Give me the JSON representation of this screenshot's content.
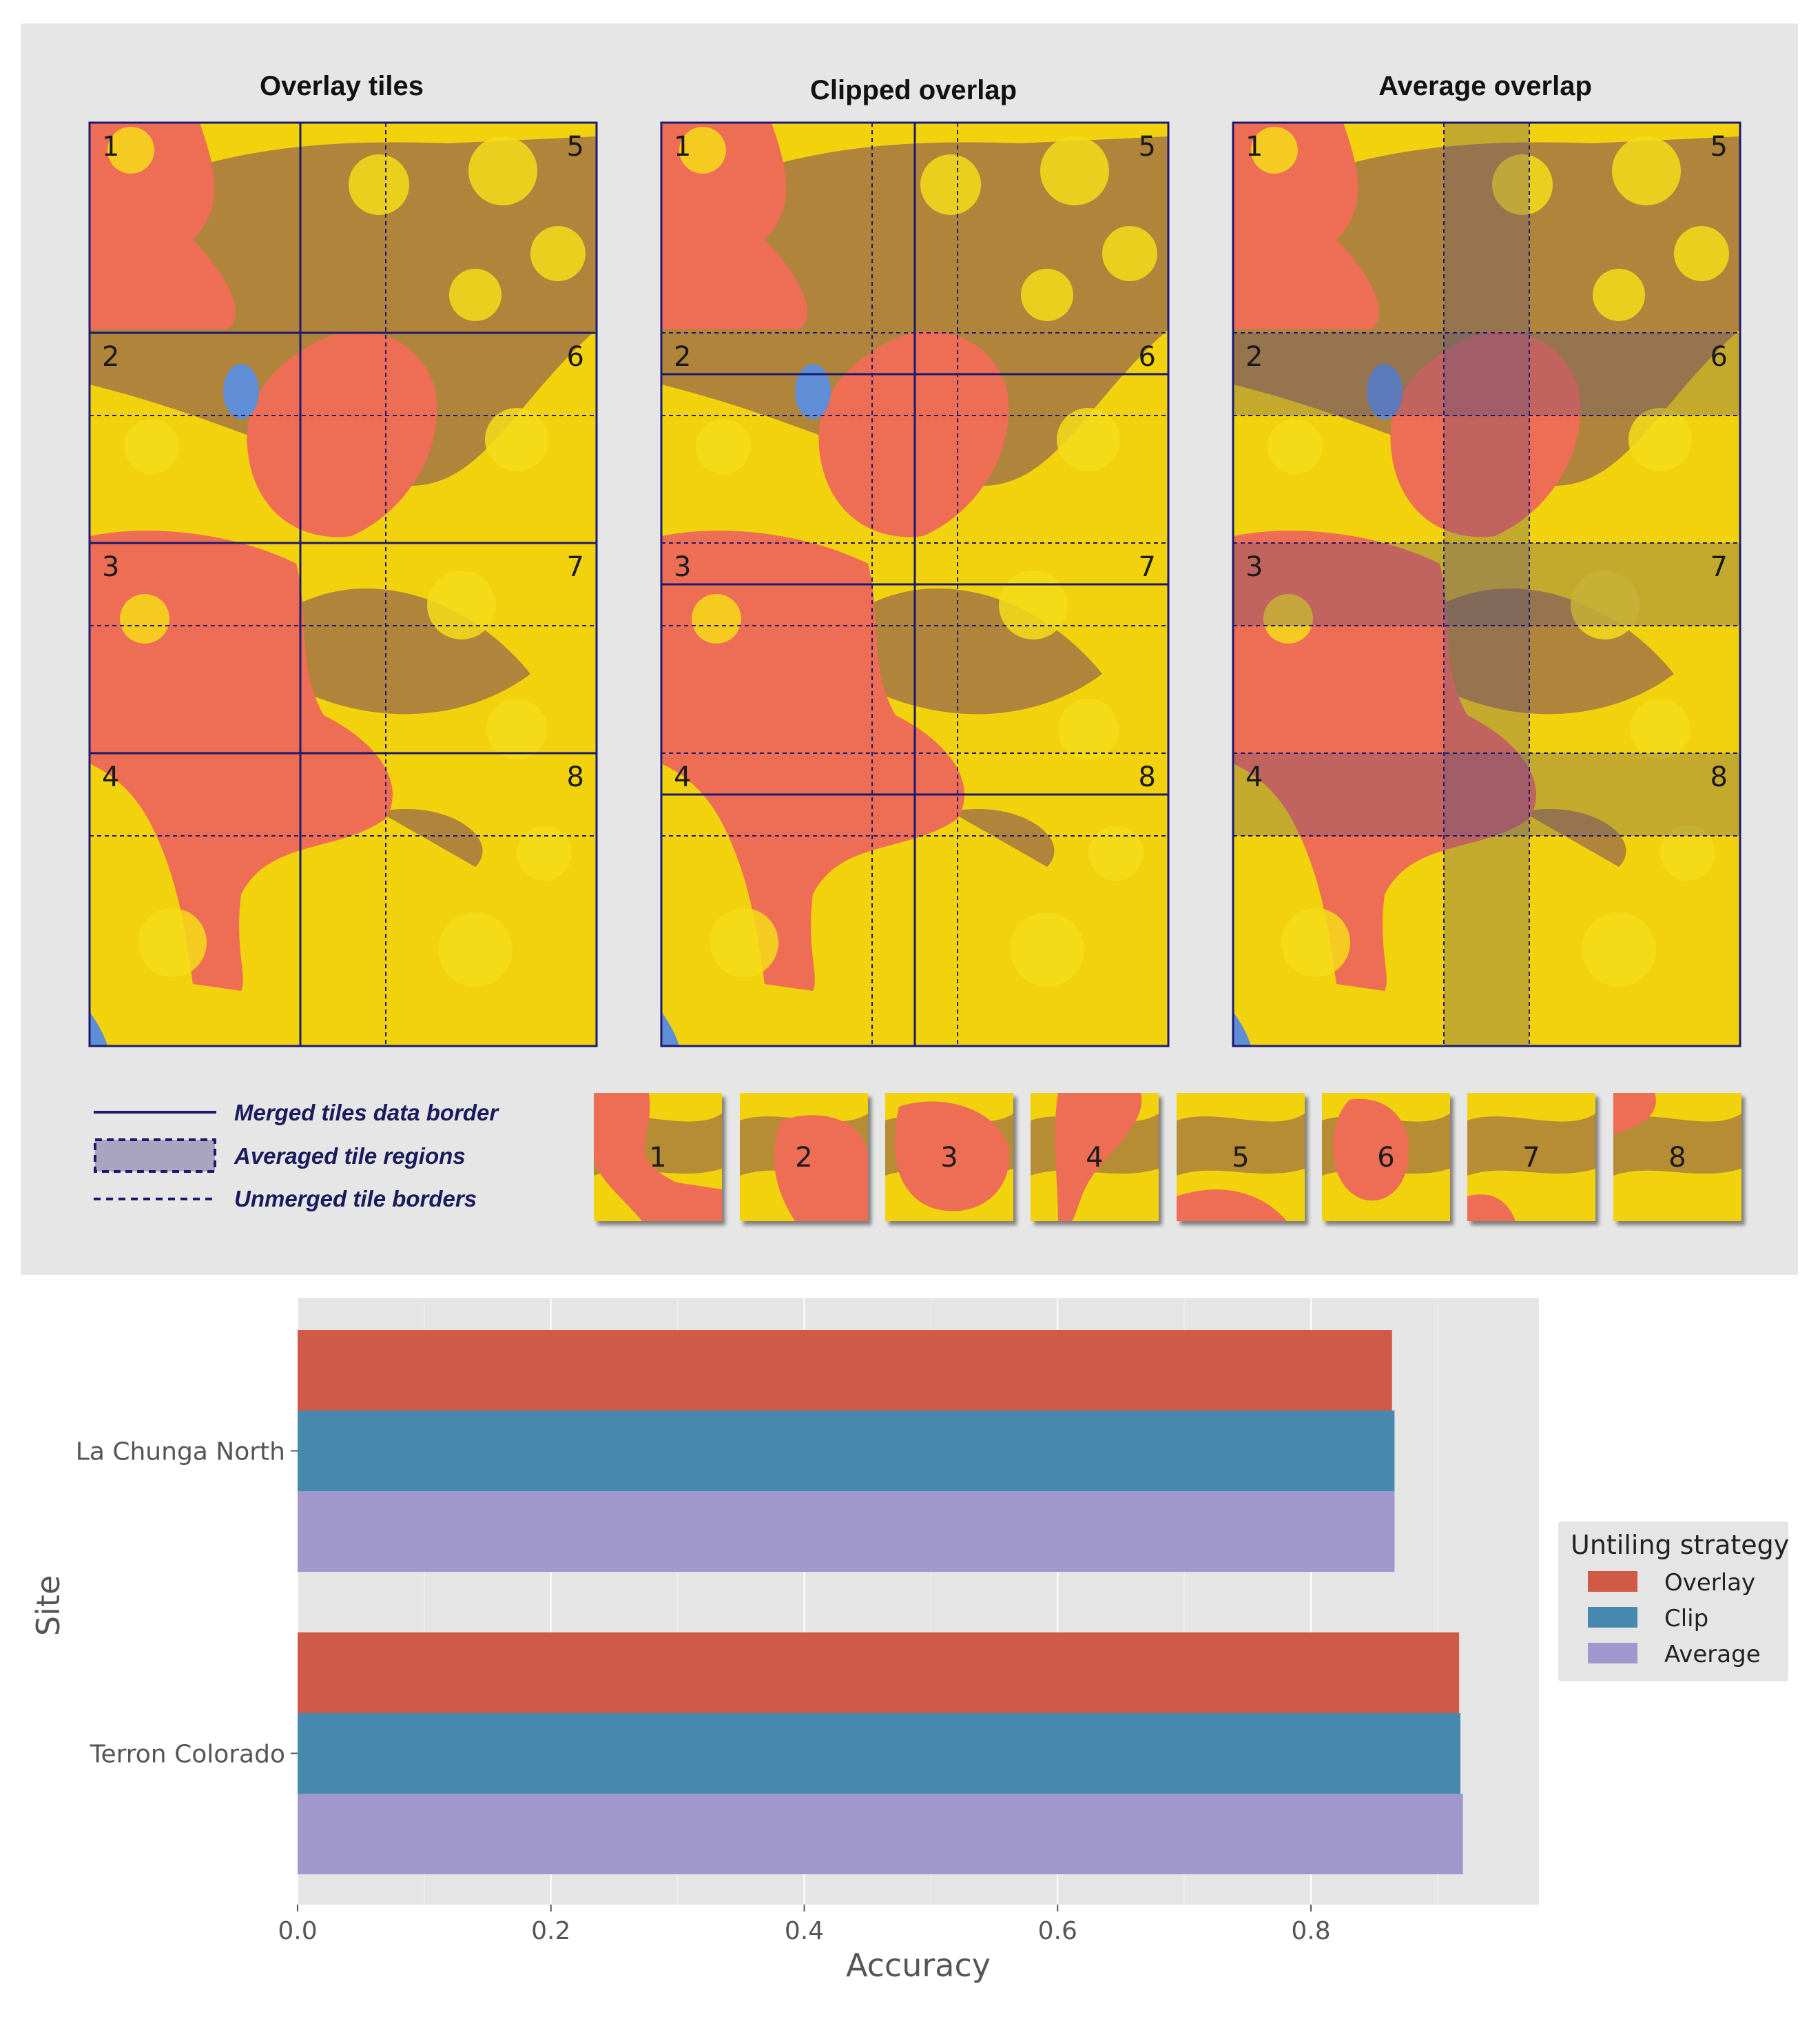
{
  "maps": {
    "panels": [
      {
        "title": "Overlay tiles",
        "tiles": [
          "1",
          "2",
          "3",
          "4",
          "5",
          "6",
          "7",
          "8"
        ]
      },
      {
        "title": "Clipped overlap",
        "tiles": [
          "1",
          "2",
          "3",
          "4",
          "5",
          "6",
          "7",
          "8"
        ]
      },
      {
        "title": "Average overlap",
        "tiles": [
          "1",
          "2",
          "3",
          "4",
          "5",
          "6",
          "7",
          "8"
        ]
      }
    ],
    "legend": {
      "merged": "Merged tiles data border",
      "averaged": "Averaged tile regions",
      "unmerged": "Unmerged tile borders"
    },
    "thumbnails": [
      "1",
      "2",
      "3",
      "4",
      "5",
      "6",
      "7",
      "8"
    ],
    "colors": {
      "yellow": "#f1d20c",
      "brown": "#a87b3f",
      "red": "#ee6d55",
      "blue": "#5f8ed6",
      "border": "#1b1a6e",
      "panel_bg": "#e6e6e6"
    }
  },
  "chart_data": {
    "type": "bar",
    "orientation": "horizontal",
    "categories": [
      "La Chunga North",
      "Terron Colorado"
    ],
    "series": [
      {
        "name": "Overlay",
        "values": [
          0.864,
          0.917
        ],
        "color": "#cf5a47"
      },
      {
        "name": "Clip",
        "values": [
          0.866,
          0.918
        ],
        "color": "#4789ae"
      },
      {
        "name": "Average",
        "values": [
          0.866,
          0.92
        ],
        "color": "#a098cc"
      }
    ],
    "xlabel": "Accuracy",
    "ylabel": "Site",
    "xlim": [
      0,
      0.98
    ],
    "xticks": [
      0.0,
      0.2,
      0.4,
      0.6,
      0.8
    ],
    "xtick_labels": [
      "0.0",
      "0.2",
      "0.4",
      "0.6",
      "0.8"
    ],
    "grid": true,
    "legend_title": "Untiling strategy",
    "legend_position": "right"
  }
}
